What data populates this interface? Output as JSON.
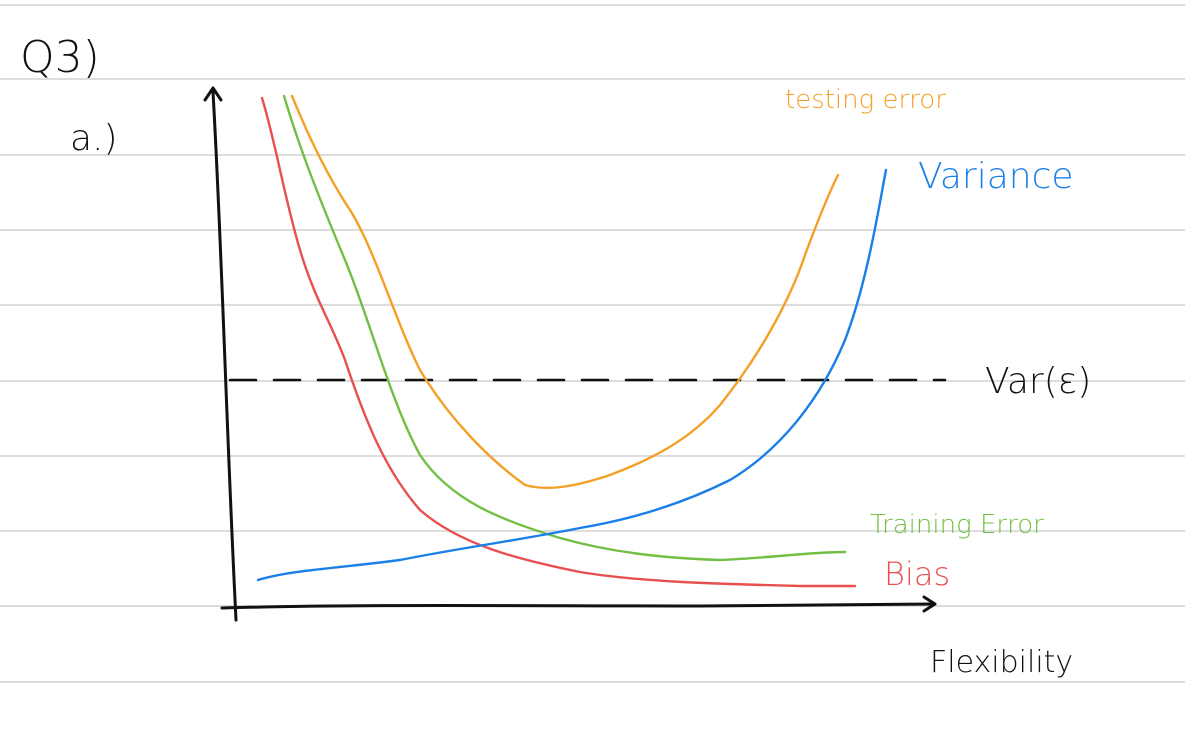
{
  "page": {
    "question": "Q3)",
    "part": "a.)"
  },
  "chart_data": {
    "type": "line",
    "xlabel": "Flexibility",
    "ylabel": "",
    "grid": false,
    "series": [
      {
        "name": "Bias",
        "color": "#e8504f",
        "x": [
          0.05,
          0.15,
          0.25,
          0.35,
          0.45,
          0.55,
          0.7,
          0.85,
          1.0
        ],
        "y": [
          1.0,
          0.62,
          0.34,
          0.16,
          0.1,
          0.06,
          0.04,
          0.035,
          0.03
        ]
      },
      {
        "name": "Training Error",
        "color": "#72bf44",
        "x": [
          0.08,
          0.2,
          0.32,
          0.45,
          0.58,
          0.7,
          0.82,
          1.0
        ],
        "y": [
          1.0,
          0.64,
          0.3,
          0.16,
          0.11,
          0.09,
          0.09,
          0.1
        ]
      },
      {
        "name": "Variance",
        "color": "#1a7fe8",
        "x": [
          0.05,
          0.2,
          0.35,
          0.5,
          0.65,
          0.8,
          0.9,
          1.0
        ],
        "y": [
          0.05,
          0.08,
          0.12,
          0.16,
          0.22,
          0.36,
          0.55,
          0.9
        ]
      },
      {
        "name": "testing error",
        "color": "#f4a027",
        "x": [
          0.08,
          0.2,
          0.3,
          0.45,
          0.6,
          0.75,
          0.88,
          1.0
        ],
        "y": [
          1.0,
          0.72,
          0.42,
          0.24,
          0.26,
          0.38,
          0.58,
          0.85
        ]
      }
    ],
    "hline": {
      "label": "Var(ε)",
      "y": 0.4,
      "color": "#111111"
    }
  }
}
